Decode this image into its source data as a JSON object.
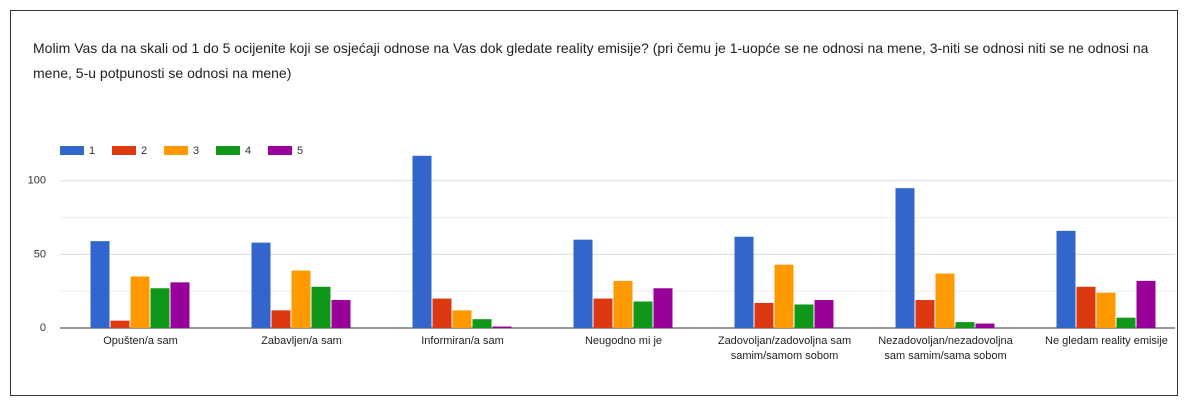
{
  "chart_data": {
    "type": "bar",
    "title": "Molim Vas da na skali od 1 do 5 ocijenite koji se osjećaji odnose na Vas dok gledate reality emisije? (pri čemu je 1-uopće se ne odnosi na mene, 3-niti se odnosi niti se ne odnosi na mene, 5-u potpunosti se odnosi na mene)",
    "categories": [
      "Opušten/a sam",
      "Zabavljen/a sam",
      "Informiran/a sam",
      "Neugodno mi je",
      "Zadovoljan/zadovoljna sam samim/samom sobom",
      "Nezadovoljan/nezadovoljna sam samim/sama sobom",
      "Ne gledam reality emisije"
    ],
    "series": [
      {
        "name": "1",
        "color": "#3366cc",
        "values": [
          59,
          58,
          117,
          60,
          62,
          95,
          66
        ]
      },
      {
        "name": "2",
        "color": "#dc3912",
        "values": [
          5,
          12,
          20,
          20,
          17,
          19,
          28
        ]
      },
      {
        "name": "3",
        "color": "#ff9900",
        "values": [
          35,
          39,
          12,
          32,
          43,
          37,
          24
        ]
      },
      {
        "name": "4",
        "color": "#109618",
        "values": [
          27,
          28,
          6,
          18,
          16,
          4,
          7
        ]
      },
      {
        "name": "5",
        "color": "#990099",
        "values": [
          31,
          19,
          1,
          27,
          19,
          3,
          32
        ]
      }
    ],
    "ylim": [
      0,
      125
    ],
    "yticks": [
      0,
      50,
      100
    ],
    "minor_yticks": [
      25,
      75
    ],
    "grid": true,
    "legend": "top"
  }
}
